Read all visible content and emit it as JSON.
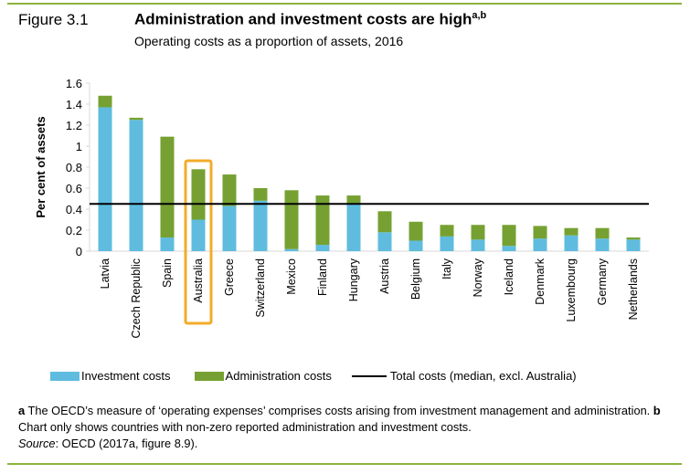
{
  "figure_label": "Figure 3.1",
  "colors": {
    "investment": "#5fbcdf",
    "administration": "#76a132",
    "median": "#000000",
    "highlight": "#f2ac2a",
    "rule": "#8cb33f"
  },
  "chart_data": {
    "type": "bar",
    "stacked": true,
    "title": "Administration and investment costs are high",
    "title_superscript": "a,b",
    "subtitle": "Operating costs as a proportion of assets, 2016",
    "xlabel": "",
    "ylabel": "Per cent of assets",
    "ylim": [
      0,
      1.6
    ],
    "yticks": [
      "0",
      "0.2",
      "0.4",
      "0.6",
      "0.8",
      "1",
      "1.2",
      "1.4",
      "1.6"
    ],
    "categories": [
      "Latvia",
      "Czech Republic",
      "Spain",
      "Australia",
      "Greece",
      "Switzerland",
      "Mexico",
      "Finland",
      "Hungary",
      "Austria",
      "Belgium",
      "Italy",
      "Norway",
      "Iceland",
      "Denmark",
      "Luxembourg",
      "Germany",
      "Netherlands"
    ],
    "highlighted_category": "Australia",
    "series": [
      {
        "name": "Investment costs",
        "values": [
          1.37,
          1.25,
          0.13,
          0.3,
          0.43,
          0.48,
          0.02,
          0.06,
          0.45,
          0.18,
          0.1,
          0.14,
          0.11,
          0.05,
          0.12,
          0.15,
          0.12,
          0.11
        ]
      },
      {
        "name": "Administration costs",
        "values": [
          0.11,
          0.02,
          0.96,
          0.48,
          0.3,
          0.12,
          0.56,
          0.47,
          0.08,
          0.2,
          0.18,
          0.11,
          0.14,
          0.2,
          0.12,
          0.07,
          0.1,
          0.02
        ]
      }
    ],
    "reference_line": {
      "name": "Total costs (median, excl. Australia)",
      "value": 0.45
    },
    "legend_position": "bottom"
  },
  "notes": {
    "a_mark": "a",
    "a_text": " The OECD’s measure of ‘operating expenses’ comprises costs arising from investment management and administration. ",
    "b_mark": "b",
    "b_text": " Chart only shows countries with non-zero reported administration and investment costs.",
    "source_label": "Source",
    "source_text": ": OECD (2017a, figure 8.9)."
  }
}
